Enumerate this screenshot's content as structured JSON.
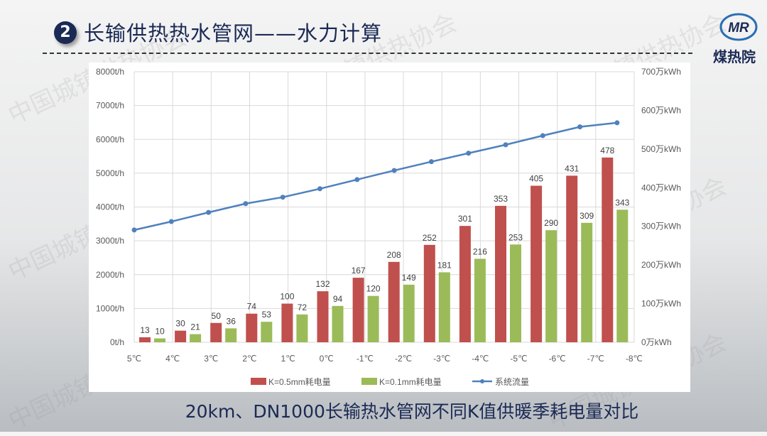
{
  "header": {
    "badge": "2",
    "title": "长输供热热水管网——水力计算",
    "logo_text": "煤热院",
    "logo_mark": "MR"
  },
  "watermark": "中国城镇供热协会",
  "caption": "20km、DN1000长输热水管网不同K值供暖季耗电量对比",
  "colors": {
    "red": "#c0504d",
    "green": "#9bbb59",
    "line": "#4f81bd",
    "title": "#1b2a55"
  },
  "chart_data": {
    "type": "bar+line",
    "categories": [
      "5℃",
      "4℃",
      "3℃",
      "2℃",
      "1℃",
      "0℃",
      "-1℃",
      "-2℃",
      "-3℃",
      "-4℃",
      "-5℃",
      "-6℃",
      "-7℃",
      "-8℃"
    ],
    "left_axis": {
      "ylim": [
        0,
        8000
      ],
      "ticks": [
        "0t/h",
        "1000t/h",
        "2000t/h",
        "3000t/h",
        "4000t/h",
        "5000t/h",
        "6000t/h",
        "7000t/h",
        "8000t/h"
      ]
    },
    "right_axis": {
      "ylim": [
        0,
        700
      ],
      "ticks": [
        "0万kWh",
        "100万kWh",
        "200万kWh",
        "300万kWh",
        "400万kWh",
        "500万kWh",
        "600万kWh",
        "700万kWh"
      ]
    },
    "series": [
      {
        "name": "K=0.5mm耗电量",
        "type": "bar",
        "axis": "right",
        "values": [
          13,
          30,
          50,
          74,
          100,
          132,
          167,
          208,
          252,
          301,
          353,
          405,
          431,
          478
        ]
      },
      {
        "name": "K=0.1mm耗电量",
        "type": "bar",
        "axis": "right",
        "values": [
          10,
          21,
          36,
          53,
          72,
          94,
          120,
          149,
          181,
          216,
          253,
          290,
          309,
          343
        ]
      },
      {
        "name": "系统流量",
        "type": "line",
        "axis": "left",
        "values": [
          3320,
          3570,
          3840,
          4100,
          4290,
          4540,
          4810,
          5080,
          5340,
          5590,
          5840,
          6110,
          6370,
          6490
        ]
      }
    ],
    "grid": true,
    "legend": "bottom"
  }
}
